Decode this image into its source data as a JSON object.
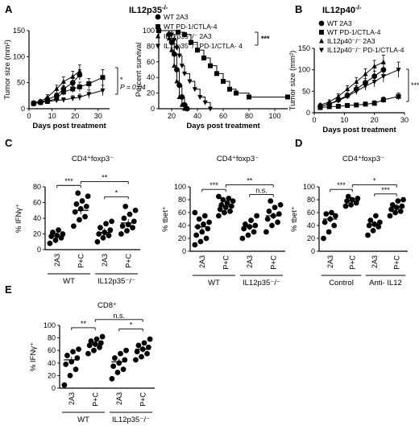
{
  "panels": {
    "A": {
      "label": "A",
      "title": "IL12p35",
      "title_sup": "-/-"
    },
    "B": {
      "label": "B",
      "title": "IL12p40",
      "title_sup": "-/-"
    },
    "C": {
      "label": "C"
    },
    "D": {
      "label": "D"
    },
    "E": {
      "label": "E"
    }
  },
  "colors": {
    "ink": "#000000",
    "background": "#ffffff"
  },
  "chart_data": [
    {
      "id": "A-tumor",
      "type": "line",
      "panel": "A",
      "ylabel": "Tumor size (mm²)",
      "xlabel": "Days post treatment",
      "xlim": [
        0,
        35
      ],
      "ylim": [
        0,
        150
      ],
      "xticks": [
        0,
        10,
        20,
        30
      ],
      "yticks": [
        0,
        50,
        100,
        150
      ],
      "annotation_p": "P = 0.04",
      "annotation_star": "*",
      "series": [
        {
          "marker": "circle",
          "x": [
            2,
            5,
            8,
            12,
            15,
            19,
            22
          ],
          "y": [
            10,
            12,
            18,
            25,
            38,
            50,
            65
          ],
          "err": [
            3,
            3,
            4,
            5,
            6,
            8,
            10
          ]
        },
        {
          "marker": "square",
          "x": [
            2,
            5,
            8,
            12,
            15,
            19,
            22,
            26,
            32
          ],
          "y": [
            10,
            12,
            14,
            20,
            32,
            38,
            42,
            48,
            60
          ],
          "err": [
            3,
            3,
            4,
            5,
            6,
            7,
            9,
            10,
            15
          ]
        },
        {
          "marker": "triangle-up",
          "x": [
            2,
            5,
            8,
            12,
            15,
            19,
            22
          ],
          "y": [
            12,
            14,
            22,
            38,
            52,
            62,
            72
          ],
          "err": [
            3,
            4,
            5,
            7,
            9,
            10,
            12
          ]
        },
        {
          "marker": "triangle-down",
          "x": [
            2,
            5,
            8,
            12,
            15,
            19,
            22,
            26,
            32
          ],
          "y": [
            10,
            12,
            14,
            16,
            17,
            20,
            22,
            28,
            35
          ],
          "err": [
            3,
            3,
            3,
            4,
            4,
            5,
            6,
            8,
            10
          ]
        }
      ]
    },
    {
      "id": "A-survival",
      "type": "line",
      "panel": "A",
      "ylabel": "Percent survival",
      "xlabel": "Days post treatment",
      "xlim": [
        10,
        110
      ],
      "ylim": [
        0,
        100
      ],
      "xticks": [
        20,
        40,
        60,
        80,
        100
      ],
      "yticks": [
        0,
        20,
        40,
        60,
        80,
        100
      ],
      "legend": [
        "WT 2A3",
        "WT PD-1/CTLA-4",
        "IL12p35⁻/⁻ 2A3",
        "IL12p35⁻/⁻ PD-1/CTLA- 4"
      ],
      "legend_sig": "***",
      "series": [
        {
          "name": "WT 2A3",
          "marker": "circle",
          "x": [
            10,
            18,
            20,
            22,
            24,
            26,
            28,
            30,
            32
          ],
          "y": [
            100,
            95,
            85,
            70,
            50,
            30,
            15,
            5,
            0
          ]
        },
        {
          "name": "WT PD-1/CTLA-4",
          "marker": "square",
          "x": [
            10,
            25,
            30,
            35,
            40,
            45,
            50,
            55,
            60,
            65,
            70,
            80,
            110
          ],
          "y": [
            100,
            98,
            95,
            85,
            75,
            65,
            55,
            45,
            35,
            25,
            20,
            15,
            15
          ]
        },
        {
          "name": "IL12p35⁻/⁻ 2A3",
          "marker": "triangle-up",
          "x": [
            10,
            18,
            20,
            22,
            24,
            26,
            28,
            30
          ],
          "y": [
            100,
            90,
            75,
            55,
            35,
            15,
            5,
            0
          ]
        },
        {
          "name": "IL12p35⁻/⁻ PD-1/CTLA- 4",
          "marker": "triangle-down",
          "x": [
            10,
            20,
            22,
            24,
            26,
            28,
            30,
            34,
            38,
            42,
            46,
            50
          ],
          "y": [
            100,
            95,
            88,
            78,
            68,
            55,
            45,
            35,
            25,
            15,
            8,
            0
          ]
        }
      ]
    },
    {
      "id": "B-tumor",
      "type": "line",
      "panel": "B",
      "ylabel": "Tumor size (mm²)",
      "xlabel": "Days post treatment",
      "xlim": [
        0,
        30
      ],
      "ylim": [
        0,
        150
      ],
      "xticks": [
        0,
        10,
        20,
        30
      ],
      "yticks": [
        0,
        50,
        100,
        150
      ],
      "legend": [
        "WT 2A3",
        "WT PD-1/CTLA-4",
        "IL12p40⁻/⁻ 2A3",
        "IL12p40⁻/⁻ PD-1/CTLA-4"
      ],
      "annotation_sig": "***",
      "series": [
        {
          "name": "WT 2A3",
          "marker": "circle",
          "x": [
            2,
            5,
            8,
            11,
            14,
            17,
            20,
            23
          ],
          "y": [
            15,
            20,
            30,
            40,
            55,
            70,
            85,
            100
          ],
          "err": [
            3,
            4,
            5,
            6,
            8,
            10,
            12,
            14
          ]
        },
        {
          "name": "WT PD-1/CTLA-4",
          "marker": "square",
          "x": [
            2,
            5,
            8,
            11,
            14,
            17,
            20,
            23,
            28
          ],
          "y": [
            12,
            14,
            15,
            17,
            18,
            20,
            22,
            30,
            38
          ],
          "err": [
            3,
            3,
            3,
            4,
            4,
            5,
            6,
            7,
            8
          ]
        },
        {
          "name": "IL12p40⁻/⁻ 2A3",
          "marker": "triangle-up",
          "x": [
            2,
            5,
            8,
            11,
            14,
            17,
            20,
            23
          ],
          "y": [
            18,
            25,
            38,
            55,
            72,
            90,
            108,
            118
          ],
          "err": [
            4,
            5,
            6,
            8,
            10,
            12,
            14,
            16
          ]
        },
        {
          "name": "IL12p40⁻/⁻ PD-1/CTLA-4",
          "marker": "triangle-down",
          "x": [
            2,
            5,
            8,
            11,
            14,
            17,
            20,
            23,
            28
          ],
          "y": [
            15,
            20,
            28,
            38,
            50,
            62,
            72,
            85,
            100
          ],
          "err": [
            3,
            4,
            5,
            6,
            8,
            10,
            12,
            14,
            18
          ]
        }
      ]
    },
    {
      "id": "C-ifng",
      "type": "scatter",
      "panel": "C",
      "title": "CD4⁺foxp3⁻",
      "ylabel": "% IFNγ⁺",
      "ylim": [
        0,
        80
      ],
      "yticks": [
        0,
        20,
        40,
        60,
        80
      ],
      "categories": [
        "2A3",
        "P+C",
        "2A3",
        "P+C"
      ],
      "groups": [
        {
          "label": "WT",
          "span": [
            0,
            1
          ]
        },
        {
          "label": "IL12p35⁻/⁻",
          "span": [
            2,
            3
          ]
        }
      ],
      "means": [
        17,
        50,
        22,
        34
      ],
      "points": [
        [
          8,
          12,
          15,
          17,
          18,
          20,
          22,
          25
        ],
        [
          30,
          38,
          42,
          48,
          52,
          55,
          58,
          62,
          68,
          72
        ],
        [
          10,
          15,
          18,
          20,
          22,
          25,
          28,
          33,
          36
        ],
        [
          20,
          24,
          28,
          30,
          32,
          36,
          40,
          45,
          50,
          55
        ]
      ],
      "brackets": [
        {
          "from": 0,
          "to": 1,
          "label": "***",
          "level": 0.92
        },
        {
          "from": 1,
          "to": 3,
          "label": "**",
          "level": 0.98
        },
        {
          "from": 2,
          "to": 3,
          "label": "*",
          "level": 0.74
        }
      ]
    },
    {
      "id": "C-tbet",
      "type": "scatter",
      "panel": "C",
      "title": "CD4⁺foxp3⁻",
      "ylabel": "% tbet⁺",
      "ylim": [
        0,
        100
      ],
      "yticks": [
        0,
        20,
        40,
        60,
        80,
        100
      ],
      "categories": [
        "2A3",
        "P+C",
        "2A3",
        "P+C"
      ],
      "groups": [
        {
          "label": "WT",
          "span": [
            0,
            1
          ]
        },
        {
          "label": "IL12p35⁻/⁻",
          "span": [
            2,
            3
          ]
        }
      ],
      "means": [
        38,
        70,
        38,
        55
      ],
      "points": [
        [
          10,
          15,
          20,
          25,
          30,
          35,
          38,
          42,
          45,
          50,
          55,
          60
        ],
        [
          55,
          60,
          62,
          65,
          68,
          70,
          72,
          75,
          78,
          80,
          82,
          85
        ],
        [
          20,
          25,
          30,
          35,
          38,
          40,
          42,
          48,
          55
        ],
        [
          30,
          40,
          45,
          50,
          55,
          58,
          62,
          68,
          72,
          78
        ]
      ],
      "brackets": [
        {
          "from": 0,
          "to": 1,
          "label": "***",
          "level": 0.86
        },
        {
          "from": 1,
          "to": 3,
          "label": "**",
          "level": 0.93
        },
        {
          "from": 2,
          "to": 3,
          "label": "n.s.",
          "level": 0.78
        }
      ]
    },
    {
      "id": "D-tbet",
      "type": "scatter",
      "panel": "D",
      "title": "CD4⁺foxp3⁻",
      "ylabel": "% tbet⁺",
      "ylim": [
        0,
        100
      ],
      "yticks": [
        0,
        20,
        40,
        60,
        80,
        100
      ],
      "categories": [
        "2A3",
        "P+C",
        "2A3",
        "P+C"
      ],
      "groups": [
        {
          "label": "Control",
          "span": [
            0,
            1
          ]
        },
        {
          "label": "Anti- IL12",
          "span": [
            2,
            3
          ]
        }
      ],
      "means": [
        50,
        78,
        42,
        68
      ],
      "points": [
        [
          20,
          30,
          40,
          45,
          50,
          55,
          58,
          60
        ],
        [
          70,
          72,
          75,
          78,
          80,
          82,
          85
        ],
        [
          25,
          32,
          38,
          40,
          42,
          45,
          48,
          55
        ],
        [
          55,
          60,
          62,
          65,
          68,
          70,
          72,
          78,
          80
        ]
      ],
      "brackets": [
        {
          "from": 0,
          "to": 1,
          "label": "***",
          "level": 0.86
        },
        {
          "from": 1,
          "to": 3,
          "label": "*",
          "level": 0.93
        },
        {
          "from": 2,
          "to": 3,
          "label": "***",
          "level": 0.79
        }
      ]
    },
    {
      "id": "E-ifng",
      "type": "scatter",
      "panel": "E",
      "title": "CD8⁺",
      "ylabel": "% IFNγ⁺",
      "ylim": [
        0,
        100
      ],
      "yticks": [
        0,
        20,
        40,
        60,
        80,
        100
      ],
      "categories": [
        "2A3",
        "P+C",
        "2A3",
        "P+C"
      ],
      "groups": [
        {
          "label": "WT",
          "span": [
            0,
            1
          ]
        },
        {
          "label": "IL12p35⁻/⁻",
          "span": [
            2,
            3
          ]
        }
      ],
      "means": [
        45,
        70,
        42,
        62
      ],
      "points": [
        [
          5,
          20,
          30,
          38,
          42,
          48,
          52,
          58,
          62
        ],
        [
          55,
          60,
          65,
          68,
          70,
          72,
          75,
          78,
          82
        ],
        [
          15,
          25,
          30,
          35,
          40,
          45,
          48,
          55,
          60
        ],
        [
          45,
          50,
          55,
          58,
          62,
          65,
          68,
          72,
          78
        ]
      ],
      "brackets": [
        {
          "from": 0,
          "to": 1,
          "label": "**",
          "level": 0.86
        },
        {
          "from": 1,
          "to": 3,
          "label": "n.s.",
          "level": 0.99
        },
        {
          "from": 2,
          "to": 3,
          "label": "*",
          "level": 0.84
        }
      ]
    }
  ]
}
